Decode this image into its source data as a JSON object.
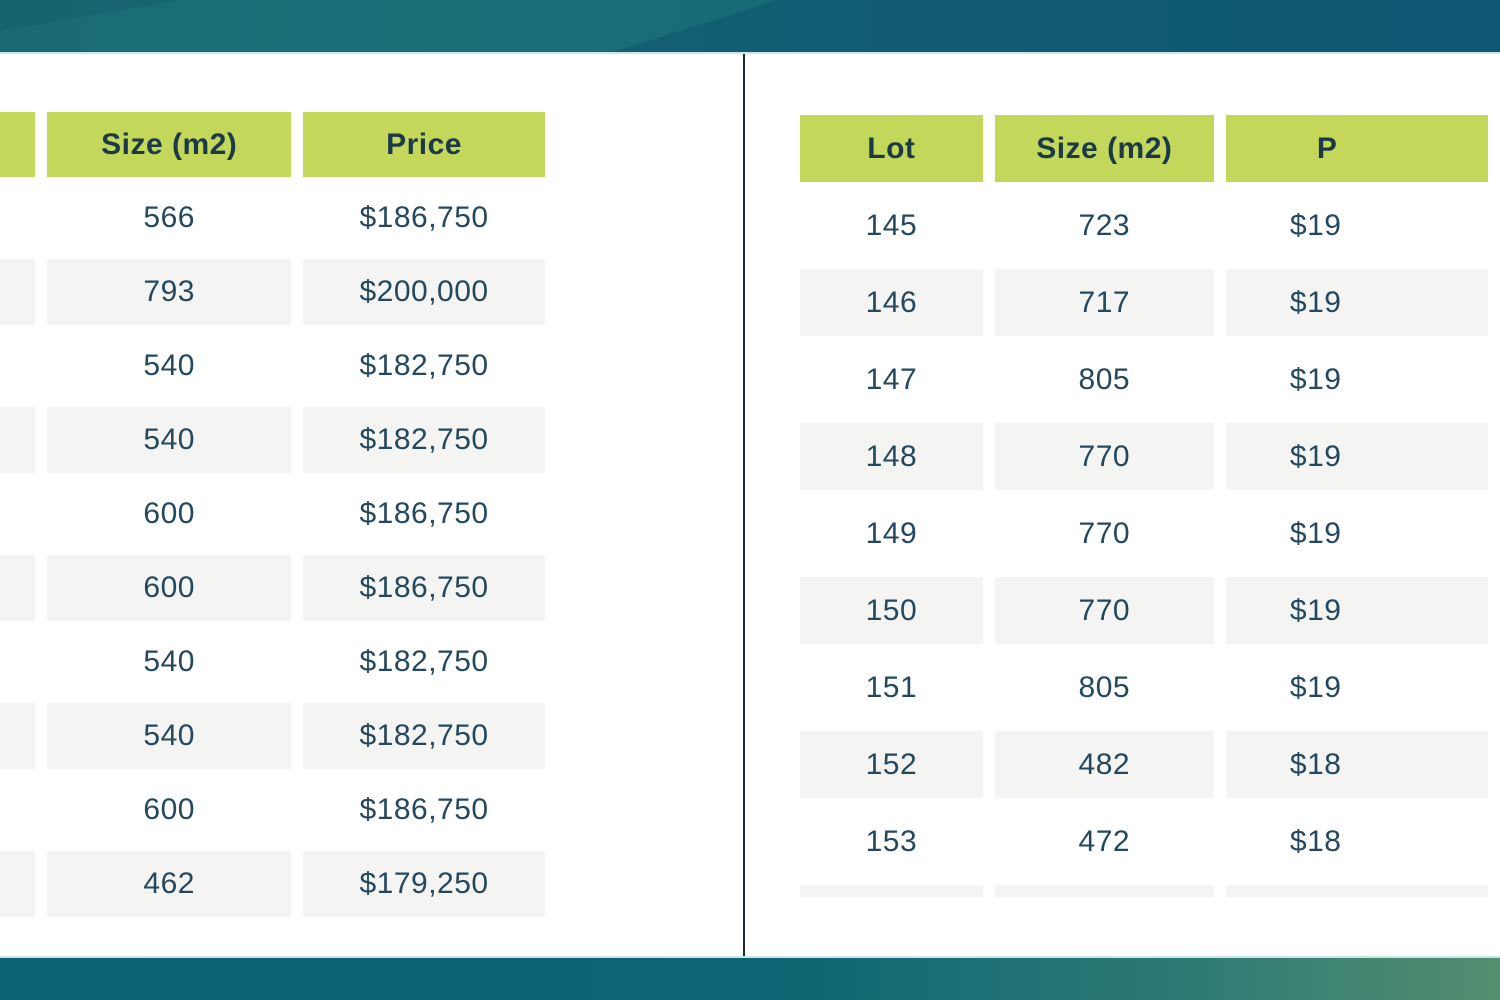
{
  "colors": {
    "top_bar": "#176a78",
    "top_bar_dark": "#0f5d7a",
    "bar_edge": "#c9e7ea",
    "bottom_bar_left": "#0b6372",
    "bottom_bar_right": "#558e6f",
    "header_green": "#c3d75a",
    "row_stripe": "#f4f4f2",
    "text": "#24485e",
    "header_text": "#1c3947",
    "divider": "#1c2a33"
  },
  "left_table": {
    "headers": [
      "",
      "Size (m2)",
      "Price"
    ],
    "header_names": [
      "lot",
      "size-m2",
      "price"
    ],
    "col_names": [
      "lot-cell",
      "size-cell",
      "price-cell"
    ],
    "rows": [
      [
        "",
        "566",
        "$186,750"
      ],
      [
        "",
        "793",
        "$200,000"
      ],
      [
        "",
        "540",
        "$182,750"
      ],
      [
        "",
        "540",
        "$182,750"
      ],
      [
        "",
        "600",
        "$186,750"
      ],
      [
        "",
        "600",
        "$186,750"
      ],
      [
        "",
        "540",
        "$182,750"
      ],
      [
        "",
        "540",
        "$182,750"
      ],
      [
        "",
        "600",
        "$186,750"
      ],
      [
        "",
        "462",
        "$179,250"
      ]
    ],
    "partial_row_visible": false
  },
  "right_table": {
    "headers": [
      "Lot",
      "Size (m2)",
      "P"
    ],
    "header_names": [
      "lot",
      "size-m2",
      "price"
    ],
    "col_names": [
      "lot-cell",
      "size-cell",
      "price-cell"
    ],
    "rows": [
      [
        "145",
        "723",
        "$19"
      ],
      [
        "146",
        "717",
        "$19"
      ],
      [
        "147",
        "805",
        "$19"
      ],
      [
        "148",
        "770",
        "$19"
      ],
      [
        "149",
        "770",
        "$19"
      ],
      [
        "150",
        "770",
        "$19"
      ],
      [
        "151",
        "805",
        "$19"
      ],
      [
        "152",
        "482",
        "$18"
      ],
      [
        "153",
        "472",
        "$18"
      ]
    ],
    "partial_row_visible": true
  }
}
